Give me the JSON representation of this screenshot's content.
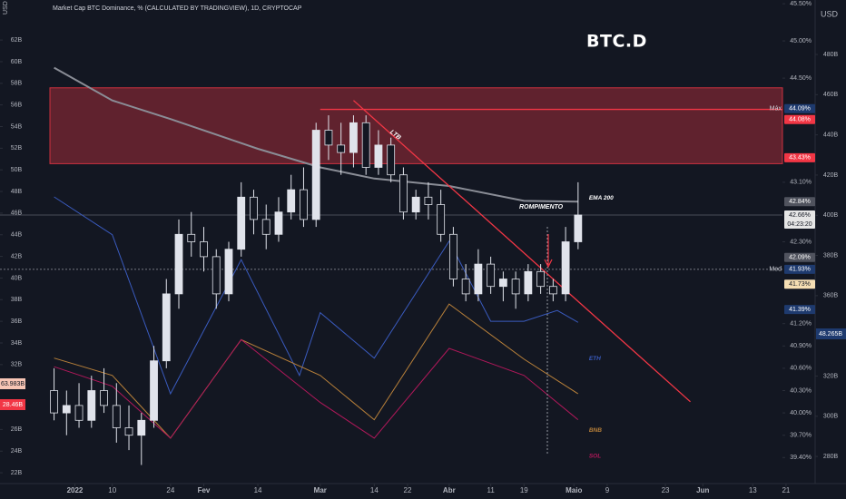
{
  "chart_data": {
    "type": "candlestick",
    "title": "BTC.D",
    "header": "Market Cap BTC Dominance, % (CALCULATED BY TRADINGVIEW), 1D, CRYPTOCAP",
    "currency_left": "USD",
    "currency_right": "USD",
    "breakout_label": "ROMPIMENTO",
    "up_color": "#e0e3eb",
    "down_color": "#131722",
    "x": [
      "2021-12-27",
      "2021-12-30",
      "2022-01-02",
      "2022-01-05",
      "2022-01-08",
      "2022-01-11",
      "2022-01-14",
      "2022-01-17",
      "2022-01-20",
      "2022-01-23",
      "2022-01-26",
      "2022-01-29",
      "2022-02-01",
      "2022-02-04",
      "2022-02-07",
      "2022-02-10",
      "2022-02-13",
      "2022-02-16",
      "2022-02-19",
      "2022-02-22",
      "2022-02-25",
      "2022-02-28",
      "2022-03-03",
      "2022-03-06",
      "2022-03-09",
      "2022-03-12",
      "2022-03-15",
      "2022-03-18",
      "2022-03-21",
      "2022-03-24",
      "2022-03-27",
      "2022-03-30",
      "2022-04-02",
      "2022-04-05",
      "2022-04-08",
      "2022-04-11",
      "2022-04-14",
      "2022-04-17",
      "2022-04-20",
      "2022-04-23",
      "2022-04-26",
      "2022-04-29",
      "2022-05-02"
    ],
    "ohlc": [
      [
        40.3,
        40.6,
        39.9,
        40.0
      ],
      [
        40.0,
        40.3,
        39.7,
        40.1
      ],
      [
        40.1,
        40.4,
        39.8,
        39.9
      ],
      [
        39.9,
        40.5,
        39.8,
        40.3
      ],
      [
        40.3,
        40.6,
        40.0,
        40.1
      ],
      [
        40.1,
        40.4,
        39.6,
        39.8
      ],
      [
        39.8,
        40.1,
        39.5,
        39.7
      ],
      [
        39.7,
        40.0,
        39.3,
        39.9
      ],
      [
        39.9,
        40.9,
        39.8,
        40.7
      ],
      [
        40.7,
        41.8,
        40.6,
        41.6
      ],
      [
        41.6,
        42.6,
        41.4,
        42.4
      ],
      [
        42.4,
        42.7,
        42.1,
        42.3
      ],
      [
        42.3,
        42.5,
        41.9,
        42.1
      ],
      [
        42.1,
        42.2,
        41.4,
        41.6
      ],
      [
        41.6,
        42.3,
        41.5,
        42.2
      ],
      [
        42.2,
        43.1,
        42.1,
        42.9
      ],
      [
        42.9,
        43.0,
        42.4,
        42.6
      ],
      [
        42.6,
        42.8,
        42.2,
        42.4
      ],
      [
        42.4,
        42.9,
        42.3,
        42.7
      ],
      [
        42.7,
        43.2,
        42.6,
        43.0
      ],
      [
        43.0,
        43.3,
        42.5,
        42.6
      ],
      [
        42.6,
        43.9,
        42.5,
        43.8
      ],
      [
        43.8,
        44.0,
        43.4,
        43.6
      ],
      [
        43.6,
        43.9,
        43.2,
        43.5
      ],
      [
        43.5,
        44.0,
        43.3,
        43.9
      ],
      [
        43.9,
        44.0,
        43.2,
        43.3
      ],
      [
        43.3,
        43.8,
        43.2,
        43.6
      ],
      [
        43.6,
        43.7,
        43.1,
        43.2
      ],
      [
        43.2,
        43.3,
        42.6,
        42.7
      ],
      [
        42.7,
        43.0,
        42.6,
        42.9
      ],
      [
        42.9,
        43.1,
        42.6,
        42.8
      ],
      [
        42.8,
        43.0,
        42.3,
        42.4
      ],
      [
        42.4,
        42.5,
        41.7,
        41.8
      ],
      [
        41.8,
        42.0,
        41.5,
        41.6
      ],
      [
        41.6,
        42.2,
        41.5,
        42.0
      ],
      [
        42.0,
        42.1,
        41.6,
        41.7
      ],
      [
        41.7,
        41.9,
        41.5,
        41.8
      ],
      [
        41.8,
        41.9,
        41.4,
        41.6
      ],
      [
        41.6,
        42.0,
        41.5,
        41.9
      ],
      [
        41.9,
        42.0,
        41.6,
        41.7
      ],
      [
        41.7,
        41.8,
        41.5,
        41.6
      ],
      [
        41.6,
        42.5,
        41.5,
        42.3
      ],
      [
        42.3,
        43.1,
        42.2,
        42.66
      ]
    ],
    "xlim": [
      "2021-12-14",
      "2022-06-28"
    ],
    "xticks": [
      {
        "value": "2022-01-01",
        "label": "2022"
      },
      {
        "value": "2022-01-10",
        "label": "10"
      },
      {
        "value": "2022-01-24",
        "label": "24"
      },
      {
        "value": "2022-02-01",
        "label": "Fev"
      },
      {
        "value": "2022-02-14",
        "label": "14"
      },
      {
        "value": "2022-03-01",
        "label": "Mar"
      },
      {
        "value": "2022-03-14",
        "label": "14"
      },
      {
        "value": "2022-03-22",
        "label": "22"
      },
      {
        "value": "2022-04-01",
        "label": "Abr"
      },
      {
        "value": "2022-04-11",
        "label": "11"
      },
      {
        "value": "2022-04-19",
        "label": "19"
      },
      {
        "value": "2022-05-01",
        "label": "Maio"
      },
      {
        "value": "2022-05-09",
        "label": "9"
      },
      {
        "value": "2022-05-23",
        "label": "23"
      },
      {
        "value": "2022-06-01",
        "label": "Jun"
      },
      {
        "value": "2022-06-13",
        "label": "13"
      },
      {
        "value": "2022-06-21",
        "label": "21"
      }
    ],
    "ylim": [
      39.05,
      45.55
    ],
    "yticks": [
      {
        "value": 45.5,
        "label": "45.50%"
      },
      {
        "value": 45.0,
        "label": "45.00%"
      },
      {
        "value": 44.5,
        "label": "44.50%"
      },
      {
        "value": 43.1,
        "label": "43.10%"
      },
      {
        "value": 42.3,
        "label": "42.30%"
      },
      {
        "value": 41.2,
        "label": "41.20%"
      },
      {
        "value": 40.9,
        "label": "40.90%"
      },
      {
        "value": 40.6,
        "label": "40.60%"
      },
      {
        "value": 40.3,
        "label": "40.30%"
      },
      {
        "value": 40.0,
        "label": "40.00%"
      },
      {
        "value": 39.7,
        "label": "39.70%"
      },
      {
        "value": 39.4,
        "label": "39.40%"
      }
    ],
    "y2lim": [
      21,
      65.7
    ],
    "y2ticks": [
      {
        "value": 62,
        "label": "62B"
      },
      {
        "value": 60,
        "label": "60B"
      },
      {
        "value": 58,
        "label": "58B"
      },
      {
        "value": 56,
        "label": "56B"
      },
      {
        "value": 54,
        "label": "54B"
      },
      {
        "value": 52,
        "label": "52B"
      },
      {
        "value": 50,
        "label": "50B"
      },
      {
        "value": 48,
        "label": "48B"
      },
      {
        "value": 46,
        "label": "46B"
      },
      {
        "value": 44,
        "label": "44B"
      },
      {
        "value": 42,
        "label": "42B"
      },
      {
        "value": 40,
        "label": "40B"
      },
      {
        "value": 38,
        "label": "38B"
      },
      {
        "value": 36,
        "label": "36B"
      },
      {
        "value": 34,
        "label": "34B"
      },
      {
        "value": 32,
        "label": "32B"
      },
      {
        "value": 30,
        "label": "30B"
      },
      {
        "value": 28,
        "label": "28B"
      },
      {
        "value": 26,
        "label": "26B"
      },
      {
        "value": 24,
        "label": "24B"
      },
      {
        "value": 22,
        "label": "22B"
      }
    ],
    "y3lim": [
      266.5,
      507.1
    ],
    "y3ticks": [
      {
        "value": 480,
        "label": "480B"
      },
      {
        "value": 460,
        "label": "460B"
      },
      {
        "value": 440,
        "label": "440B"
      },
      {
        "value": 420,
        "label": "420B"
      },
      {
        "value": 400,
        "label": "400B"
      },
      {
        "value": 380,
        "label": "380B"
      },
      {
        "value": 360,
        "label": "360B"
      },
      {
        "value": 320,
        "label": "320B"
      },
      {
        "value": 300,
        "label": "300B"
      },
      {
        "value": 280,
        "label": "280B"
      }
    ],
    "series": [
      {
        "name": "EMA 200",
        "color": "#8a8d96",
        "x": [
          "2021-12-27",
          "2022-01-10",
          "2022-01-24",
          "2022-02-14",
          "2022-03-01",
          "2022-03-14",
          "2022-04-01",
          "2022-04-19",
          "2022-05-02"
        ],
        "values": [
          44.64,
          44.2,
          43.95,
          43.55,
          43.3,
          43.15,
          43.05,
          42.85,
          42.84
        ]
      },
      {
        "name": "ETH",
        "axis": "y2",
        "color": "#3a5bbf",
        "x": [
          "2021-12-27",
          "2022-01-10",
          "2022-01-24",
          "2022-02-10",
          "2022-02-24",
          "2022-03-01",
          "2022-03-14",
          "2022-04-01",
          "2022-04-11",
          "2022-04-19",
          "2022-04-27",
          "2022-05-02"
        ],
        "values": [
          47.5,
          44,
          29.3,
          41.7,
          31,
          36.8,
          32.6,
          43.4,
          36,
          36,
          37,
          35.9
        ]
      },
      {
        "name": "BNB",
        "axis": "y2",
        "color": "#b9813a",
        "x": [
          "2021-12-27",
          "2022-01-10",
          "2022-01-24",
          "2022-02-10",
          "2022-03-01",
          "2022-03-14",
          "2022-04-01",
          "2022-04-19",
          "2022-05-02"
        ],
        "values": [
          32.6,
          31,
          25.2,
          34.3,
          31,
          26.9,
          37.6,
          32.5,
          29.3
        ]
      },
      {
        "name": "SOL",
        "axis": "y2",
        "color": "#b0185a",
        "x": [
          "2021-12-27",
          "2022-01-10",
          "2022-01-24",
          "2022-02-10",
          "2022-03-01",
          "2022-03-14",
          "2022-04-01",
          "2022-04-19",
          "2022-05-02"
        ],
        "values": [
          31.8,
          30,
          25.2,
          34.3,
          28.5,
          25.2,
          33.5,
          31,
          26.9
        ]
      }
    ],
    "zone": {
      "from": "2021-12-26",
      "range": [
        43.35,
        44.37
      ],
      "color": "#f23645"
    },
    "hlines": [
      {
        "value": 44.08,
        "color": "#f23645",
        "from": "2022-03-01"
      },
      {
        "value": 42.66,
        "color": "#5d606b"
      },
      {
        "value": 41.93,
        "color": "#9598a1",
        "dash": true
      }
    ],
    "trendline": {
      "label": "LTB",
      "color": "#f23645",
      "x": [
        "2022-03-09",
        "2022-05-29"
      ],
      "values": [
        44.2,
        40.15
      ]
    },
    "price_badges": [
      {
        "value": 44.09,
        "label": "44.09%",
        "tag": "Máx",
        "color": "#1e3a6e"
      },
      {
        "value": 44.08,
        "label": "44.08%",
        "color": "#f23645"
      },
      {
        "value": 43.43,
        "label": "43.43%",
        "color": "#f23645"
      },
      {
        "value": 42.84,
        "label": "42.84%",
        "color": "#50535e"
      },
      {
        "value": 42.66,
        "label": "42.66%",
        "sub": "04:23:20",
        "color": "#e6e6e6"
      },
      {
        "value": 42.09,
        "label": "42.09%",
        "color": "#50535e"
      },
      {
        "value": 41.93,
        "label": "41.93%",
        "tag": "Med",
        "color": "#1e3a6e"
      },
      {
        "value": 41.73,
        "label": "41.73%",
        "color": "#f5deb3"
      },
      {
        "value": 41.39,
        "label": "41.39%",
        "color": "#1e3a6e"
      }
    ],
    "left_badges": [
      {
        "label": "63.983B",
        "color": "#f7c5b5"
      },
      {
        "label": "28.46B",
        "color": "#f23645"
      }
    ],
    "right_badge": {
      "label": "48.265B",
      "color": "#1e3a6e"
    }
  }
}
